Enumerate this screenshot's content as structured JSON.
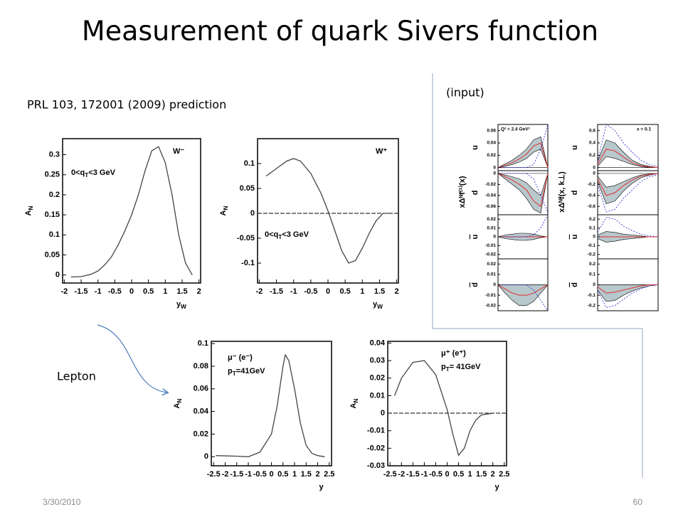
{
  "title": "Measurement of quark Sivers function",
  "subtitle": "PRL 103, 172001 (2009) prediction",
  "input_label": "(input)",
  "lepton_label": "Lepton",
  "footer": {
    "date": "3/30/2010",
    "page": "60"
  },
  "chart_data": [
    {
      "type": "line",
      "color": "#444444",
      "x_label": [
        "y",
        "W"
      ],
      "y_label": [
        "A",
        "N"
      ],
      "annotations": [
        [
          "W⁻"
        ],
        [
          "0<q",
          "T",
          "<3 GeV"
        ]
      ],
      "x": [
        -1.8,
        -1.5,
        -1.2,
        -1,
        -0.8,
        -0.6,
        -0.4,
        -0.2,
        0,
        0.2,
        0.4,
        0.6,
        0.8,
        1,
        1.2,
        1.4,
        1.6,
        1.8
      ],
      "values": [
        -0.005,
        -0.004,
        0.002,
        0.01,
        0.025,
        0.045,
        0.075,
        0.11,
        0.15,
        0.2,
        0.26,
        0.31,
        0.32,
        0.28,
        0.2,
        0.1,
        0.03,
        0
      ],
      "xlim": [
        -2.05,
        2.05
      ],
      "xticks": [
        -2,
        -1.5,
        -1,
        -0.5,
        0,
        0.5,
        1,
        1.5,
        2
      ],
      "ylim": [
        -0.02,
        0.34
      ],
      "yticks": [
        0,
        0.05,
        0.1,
        0.15,
        0.2,
        0.25,
        0.3
      ],
      "zero_line": false
    },
    {
      "type": "line",
      "color": "#444444",
      "x_label": [
        "y",
        "W"
      ],
      "y_label": [
        "A",
        "N"
      ],
      "annotations": [
        [
          "W⁺"
        ],
        [
          "0<q",
          "T",
          "<3 GeV"
        ]
      ],
      "x": [
        -1.8,
        -1.5,
        -1.2,
        -1,
        -0.8,
        -0.5,
        -0.2,
        0,
        0.2,
        0.4,
        0.6,
        0.8,
        1,
        1.2,
        1.4,
        1.6,
        1.8
      ],
      "values": [
        0.075,
        0.09,
        0.105,
        0.11,
        0.105,
        0.08,
        0.04,
        0.005,
        -0.035,
        -0.075,
        -0.1,
        -0.095,
        -0.07,
        -0.04,
        -0.015,
        0,
        0
      ],
      "xlim": [
        -2.05,
        2.05
      ],
      "xticks": [
        -2,
        -1.5,
        -1,
        -0.5,
        0,
        0.5,
        1,
        1.5,
        2
      ],
      "ylim": [
        -0.14,
        0.15
      ],
      "yticks": [
        -0.1,
        -0.05,
        0,
        0.05,
        0.1
      ],
      "zero_line": true
    },
    {
      "type": "line",
      "color": "#444444",
      "x_label": [
        "y"
      ],
      "y_label": [
        "A",
        "N"
      ],
      "annotations": [
        [
          "μ⁻ (e⁻)"
        ],
        [
          "p",
          "T",
          "=41GeV"
        ]
      ],
      "x": [
        -2.4,
        -1.5,
        -1,
        -0.5,
        0,
        0.25,
        0.5,
        0.6,
        0.75,
        1,
        1.25,
        1.5,
        1.75,
        2,
        2.3
      ],
      "values": [
        0.001,
        0.0005,
        0,
        0.004,
        0.02,
        0.045,
        0.08,
        0.09,
        0.085,
        0.06,
        0.03,
        0.01,
        0.003,
        0.001,
        0
      ],
      "xlim": [
        -2.6,
        2.6
      ],
      "xticks": [
        -2.5,
        -2,
        -1.5,
        -1,
        -0.5,
        0,
        0.5,
        1,
        1.5,
        2,
        2.5
      ],
      "ylim": [
        -0.008,
        0.102
      ],
      "yticks": [
        0,
        0.02,
        0.04,
        0.06,
        0.08,
        0.1
      ],
      "zero_line": false
    },
    {
      "type": "line",
      "color": "#444444",
      "x_label": [
        "y"
      ],
      "y_label": [
        "A",
        "N"
      ],
      "annotations": [
        [
          "μ⁺ (e⁺)"
        ],
        [
          "p",
          "T",
          "= 41GeV"
        ]
      ],
      "x": [
        -2.3,
        -2,
        -1.5,
        -1,
        -0.5,
        0,
        0.25,
        0.5,
        0.75,
        1,
        1.25,
        1.5,
        2
      ],
      "values": [
        0.01,
        0.02,
        0.029,
        0.03,
        0.022,
        0.002,
        -0.012,
        -0.024,
        -0.02,
        -0.01,
        -0.004,
        -0.001,
        0
      ],
      "xlim": [
        -2.6,
        2.6
      ],
      "xticks": [
        -2.5,
        -2,
        -1.5,
        -1,
        -0.5,
        0,
        0.5,
        1,
        1.5,
        2,
        2.5
      ],
      "ylim": [
        -0.03,
        0.041
      ],
      "yticks": [
        -0.03,
        -0.02,
        -0.01,
        0,
        0.01,
        0.02,
        0.03,
        0.04
      ],
      "zero_line": true
    }
  ],
  "input_panels": {
    "columns": [
      {
        "y_label": "xΔᴺf⁽¹⁾(x)",
        "annotation": "Q² = 2.4 GeV²",
        "rows": [
          {
            "flavor": "u",
            "antiquark": false,
            "ylim": [
              -0.005,
              0.07
            ],
            "yticks": [
              0,
              0.02,
              0.04,
              0.06
            ],
            "band_high": [
              0,
              0.006,
              0.012,
              0.02,
              0.03,
              0.045,
              0.05,
              0
            ],
            "central": [
              0,
              0.004,
              0.008,
              0.014,
              0.022,
              0.035,
              0.04,
              0
            ],
            "band_low": [
              0,
              0.002,
              0.005,
              0.009,
              0.015,
              0.025,
              0.03,
              0
            ],
            "bound": [
              0,
              0,
              0,
              0,
              0,
              0.005,
              0.03,
              0.07
            ]
          },
          {
            "flavor": "d",
            "antiquark": false,
            "ylim": [
              -0.075,
              0.005
            ],
            "yticks": [
              0,
              -0.02,
              -0.04,
              -0.06
            ],
            "band_high": [
              0,
              -0.003,
              -0.006,
              -0.01,
              -0.017,
              -0.03,
              -0.04,
              0
            ],
            "central": [
              0,
              -0.006,
              -0.012,
              -0.02,
              -0.03,
              -0.05,
              -0.06,
              0
            ],
            "band_low": [
              0,
              -0.01,
              -0.02,
              -0.03,
              -0.045,
              -0.065,
              -0.072,
              0
            ],
            "bound": [
              0,
              0,
              0,
              0,
              0,
              -0.01,
              -0.04,
              -0.07
            ]
          },
          {
            "flavor": "u",
            "antiquark": true,
            "ylim": [
              -0.025,
              0.025
            ],
            "yticks": [
              0.02,
              0.01,
              0,
              -0.01,
              -0.02
            ],
            "band_high": [
              0,
              0.002,
              0.003,
              0.004,
              0.004,
              0.003,
              0.001,
              0
            ],
            "central": [
              0,
              0,
              0,
              0,
              0,
              0,
              0,
              0
            ],
            "band_low": [
              0,
              -0.002,
              -0.003,
              -0.004,
              -0.004,
              -0.003,
              -0.001,
              0
            ],
            "bound": [
              0,
              0,
              0,
              0,
              0,
              0.002,
              0.01,
              0.025
            ]
          },
          {
            "flavor": "d",
            "antiquark": true,
            "ylim": [
              -0.025,
              0.025
            ],
            "yticks": [
              0.02,
              0.01,
              0,
              -0.01,
              -0.02
            ],
            "band_high": [
              0,
              0,
              0,
              0,
              0,
              0,
              0,
              0
            ],
            "central": [
              0,
              -0.004,
              -0.008,
              -0.01,
              -0.01,
              -0.008,
              -0.004,
              0
            ],
            "band_low": [
              0,
              -0.008,
              -0.015,
              -0.02,
              -0.02,
              -0.016,
              -0.008,
              0
            ],
            "bound": [
              0,
              0,
              0,
              0,
              0,
              -0.005,
              -0.015,
              -0.025
            ]
          }
        ]
      },
      {
        "y_label": "xΔᴺf(x, k⊥)",
        "annotation": "x = 0.1",
        "rows": [
          {
            "flavor": "u",
            "antiquark": false,
            "ylim": [
              -0.05,
              0.7
            ],
            "yticks": [
              0,
              0.2,
              0.4,
              0.6
            ],
            "band_high": [
              0.1,
              0.45,
              0.4,
              0.25,
              0.12,
              0.05,
              0.02,
              0
            ],
            "central": [
              0.05,
              0.3,
              0.27,
              0.17,
              0.08,
              0.03,
              0.01,
              0
            ],
            "band_low": [
              0.02,
              0.18,
              0.15,
              0.1,
              0.05,
              0.02,
              0,
              0
            ],
            "bound": [
              0.1,
              0.7,
              0.6,
              0.4,
              0.25,
              0.12,
              0.05,
              0.02
            ]
          },
          {
            "flavor": "d",
            "antiquark": false,
            "ylim": [
              -0.75,
              0.05
            ],
            "yticks": [
              0,
              -0.2,
              -0.4,
              -0.6
            ],
            "band_high": [
              -0.05,
              -0.25,
              -0.22,
              -0.15,
              -0.08,
              -0.03,
              -0.01,
              0
            ],
            "central": [
              -0.1,
              -0.4,
              -0.35,
              -0.22,
              -0.12,
              -0.05,
              -0.02,
              0
            ],
            "band_low": [
              -0.15,
              -0.55,
              -0.5,
              -0.32,
              -0.18,
              -0.08,
              -0.03,
              0
            ],
            "bound": [
              -0.2,
              -0.7,
              -0.65,
              -0.45,
              -0.3,
              -0.15,
              -0.06,
              -0.02
            ]
          },
          {
            "flavor": "u",
            "antiquark": true,
            "ylim": [
              -0.25,
              0.25
            ],
            "yticks": [
              0.2,
              0.1,
              0,
              -0.1,
              -0.2
            ],
            "band_high": [
              0.02,
              0.06,
              0.05,
              0.03,
              0.02,
              0.01,
              0,
              0
            ],
            "central": [
              0,
              0,
              0,
              0,
              0,
              0,
              0,
              0
            ],
            "band_low": [
              -0.02,
              -0.06,
              -0.05,
              -0.03,
              -0.02,
              -0.01,
              0,
              0
            ],
            "bound": [
              0.05,
              0.22,
              0.2,
              0.12,
              0.07,
              0.03,
              0.01,
              0
            ]
          },
          {
            "flavor": "d",
            "antiquark": true,
            "ylim": [
              -0.25,
              0.25
            ],
            "yticks": [
              0.2,
              0.1,
              0,
              -0.1,
              -0.2
            ],
            "band_high": [
              0,
              0,
              0,
              0,
              0,
              0,
              0,
              0
            ],
            "central": [
              -0.02,
              -0.08,
              -0.07,
              -0.05,
              -0.03,
              -0.01,
              0,
              0
            ],
            "band_low": [
              -0.05,
              -0.16,
              -0.15,
              -0.1,
              -0.06,
              -0.03,
              -0.01,
              0
            ],
            "bound": [
              -0.05,
              -0.22,
              -0.2,
              -0.14,
              -0.08,
              -0.04,
              -0.01,
              0
            ]
          }
        ]
      }
    ]
  }
}
